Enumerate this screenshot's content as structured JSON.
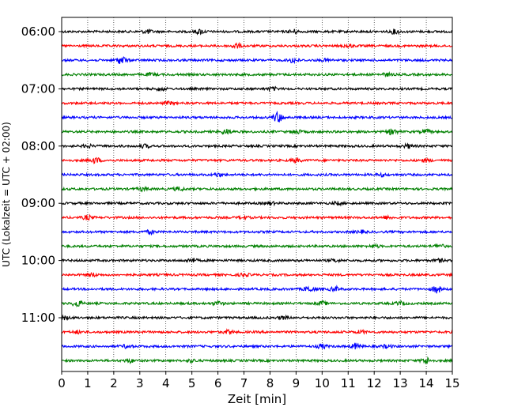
{
  "chart_data": {
    "type": "line",
    "kind": "helicorder-seismogram",
    "xlabel": "Zeit  [min]",
    "ylabel": "UTC (Lokalzeit = UTC + 02:00)",
    "xlim": [
      0,
      15
    ],
    "x_ticks": [
      "0",
      "1",
      "2",
      "3",
      "4",
      "5",
      "6",
      "7",
      "8",
      "9",
      "10",
      "11",
      "12",
      "13",
      "14",
      "15"
    ],
    "y_tick_labels": [
      "06:00",
      "07:00",
      "08:00",
      "09:00",
      "10:00",
      "11:00"
    ],
    "grid": "vertical-dotted",
    "color_cycle": [
      "#000000",
      "#ff0000",
      "#0000ff",
      "#008000"
    ],
    "traces": [
      {
        "start": "06:00",
        "events": [
          [
            3.3,
            2.2
          ],
          [
            5.3,
            2.6
          ],
          [
            8.9,
            2.2
          ],
          [
            12.8,
            2.4
          ]
        ]
      },
      {
        "start": "06:15",
        "events": [
          [
            6.7,
            2.8
          ],
          [
            11.0,
            1.8
          ]
        ]
      },
      {
        "start": "06:30",
        "events": [
          [
            2.3,
            4.5
          ],
          [
            8.9,
            3.0
          ],
          [
            10.2,
            1.6
          ]
        ]
      },
      {
        "start": "06:45",
        "events": [
          [
            3.4,
            1.4
          ],
          [
            12.5,
            1.5
          ]
        ]
      },
      {
        "start": "07:00",
        "events": [
          [
            3.8,
            1.8
          ],
          [
            8.1,
            1.7
          ]
        ]
      },
      {
        "start": "07:15",
        "events": [
          [
            4.1,
            1.6
          ]
        ]
      },
      {
        "start": "07:30",
        "events": [
          [
            8.3,
            6.0
          ]
        ]
      },
      {
        "start": "07:45",
        "events": [
          [
            6.3,
            3.0
          ],
          [
            9.0,
            2.4
          ],
          [
            12.7,
            3.2
          ],
          [
            14.0,
            2.0
          ]
        ]
      },
      {
        "start": "08:00",
        "events": [
          [
            1.0,
            1.6
          ],
          [
            3.2,
            1.8
          ],
          [
            13.3,
            2.2
          ]
        ]
      },
      {
        "start": "08:15",
        "events": [
          [
            1.3,
            3.2
          ],
          [
            9.0,
            2.4
          ],
          [
            14.0,
            1.6
          ]
        ]
      },
      {
        "start": "08:30",
        "events": [
          [
            6.0,
            1.6
          ],
          [
            12.3,
            1.5
          ]
        ]
      },
      {
        "start": "08:45",
        "events": [
          [
            3.1,
            1.8
          ],
          [
            4.5,
            2.0
          ]
        ]
      },
      {
        "start": "09:00",
        "events": [
          [
            8.0,
            1.6
          ],
          [
            10.6,
            1.5
          ]
        ]
      },
      {
        "start": "09:15",
        "events": [
          [
            1.0,
            2.4
          ],
          [
            7.0,
            1.5
          ],
          [
            12.5,
            1.5
          ]
        ]
      },
      {
        "start": "09:30",
        "events": [
          [
            3.4,
            2.0
          ],
          [
            11.5,
            1.5
          ]
        ]
      },
      {
        "start": "09:45",
        "events": [
          [
            14.5,
            2.0
          ],
          [
            12.0,
            1.6
          ]
        ]
      },
      {
        "start": "10:00",
        "events": [
          [
            5.0,
            2.4
          ],
          [
            10.5,
            1.5
          ],
          [
            14.5,
            1.6
          ]
        ]
      },
      {
        "start": "10:15",
        "events": [
          [
            1.2,
            1.8
          ],
          [
            7.0,
            1.5
          ]
        ]
      },
      {
        "start": "10:30",
        "events": [
          [
            9.5,
            3.0
          ],
          [
            10.5,
            2.6
          ],
          [
            14.4,
            4.0
          ]
        ]
      },
      {
        "start": "10:45",
        "events": [
          [
            0.6,
            3.5
          ],
          [
            6.0,
            2.0
          ],
          [
            10.0,
            2.0
          ],
          [
            13.0,
            2.0
          ]
        ]
      },
      {
        "start": "11:00",
        "events": [
          [
            0.1,
            1.8
          ],
          [
            8.5,
            1.5
          ]
        ]
      },
      {
        "start": "11:15",
        "events": [
          [
            0.6,
            1.6
          ],
          [
            6.4,
            2.0
          ],
          [
            11.5,
            1.6
          ]
        ]
      },
      {
        "start": "11:30",
        "events": [
          [
            2.5,
            1.8
          ],
          [
            10.0,
            2.4
          ],
          [
            11.3,
            3.0
          ],
          [
            12.5,
            1.8
          ]
        ]
      },
      {
        "start": "11:45",
        "events": [
          [
            2.6,
            2.0
          ],
          [
            14.0,
            3.6
          ],
          [
            5.0,
            1.6
          ]
        ]
      }
    ]
  }
}
